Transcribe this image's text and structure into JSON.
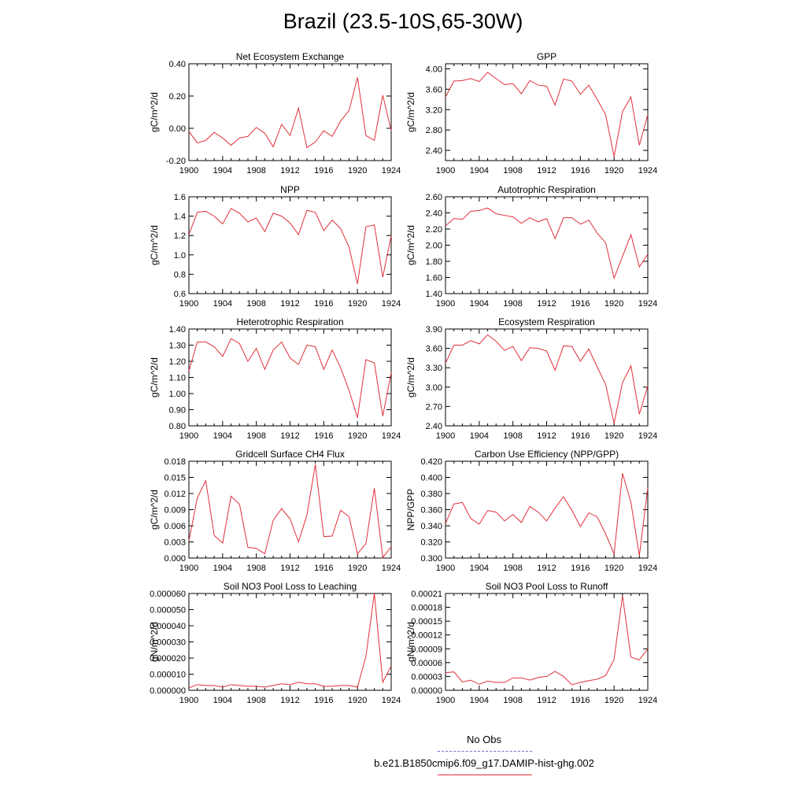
{
  "page": {
    "title": "Brazil (23.5-10S,65-30W)"
  },
  "legend": {
    "items": [
      {
        "label": "No Obs",
        "color": "#6a6ad0",
        "style": "dashed"
      },
      {
        "label": "b.e21.B1850cmip6.f09_g17.DAMIP-hist-ghg.002",
        "color": "#e0303a",
        "style": "solid"
      }
    ]
  },
  "chart_data": [
    {
      "type": "line",
      "title": "Net Ecosystem Exchange",
      "xlabel": "",
      "ylabel": "gC/m^2/d",
      "xlim": [
        1900,
        1924
      ],
      "ylim": [
        -0.2,
        0.4
      ],
      "xticks": [
        "1900",
        "1904",
        "1908",
        "1912",
        "1916",
        "1920",
        "1924"
      ],
      "yticks": [
        "-0.20",
        "0.00",
        "0.20",
        "0.40"
      ],
      "series": [
        {
          "color": "#e0303a",
          "x": [
            1900,
            1901,
            1902,
            1903,
            1904,
            1905,
            1906,
            1907,
            1908,
            1909,
            1910,
            1911,
            1912,
            1913,
            1914,
            1915,
            1916,
            1917,
            1918,
            1919,
            1920,
            1921,
            1922,
            1923,
            1924
          ],
          "y": [
            -0.02,
            -0.09,
            -0.075,
            -0.025,
            -0.06,
            -0.105,
            -0.06,
            -0.05,
            0.005,
            -0.03,
            -0.115,
            0.025,
            -0.045,
            0.125,
            -0.12,
            -0.085,
            -0.015,
            -0.05,
            0.045,
            0.11,
            0.315,
            -0.045,
            -0.075,
            0.205,
            -0.015
          ]
        }
      ]
    },
    {
      "type": "line",
      "title": "GPP",
      "xlabel": "",
      "ylabel": "gC/m^2/d",
      "xlim": [
        1900,
        1924
      ],
      "ylim": [
        2.2,
        4.1
      ],
      "xticks": [
        "1900",
        "1904",
        "1908",
        "1912",
        "1916",
        "1920",
        "1924"
      ],
      "yticks": [
        "2.40",
        "2.80",
        "3.20",
        "3.60",
        "4.00"
      ],
      "series": [
        {
          "color": "#e0303a",
          "x": [
            1900,
            1901,
            1902,
            1903,
            1904,
            1905,
            1906,
            1907,
            1908,
            1909,
            1910,
            1911,
            1912,
            1913,
            1914,
            1915,
            1916,
            1917,
            1918,
            1919,
            1920,
            1921,
            1922,
            1923,
            1924
          ],
          "y": [
            3.45,
            3.76,
            3.77,
            3.81,
            3.75,
            3.93,
            3.81,
            3.69,
            3.71,
            3.51,
            3.77,
            3.68,
            3.66,
            3.29,
            3.8,
            3.76,
            3.5,
            3.68,
            3.4,
            3.1,
            2.28,
            3.16,
            3.45,
            2.5,
            3.1
          ]
        }
      ]
    },
    {
      "type": "line",
      "title": "NPP",
      "xlabel": "",
      "ylabel": "gC/m^2/d",
      "xlim": [
        1900,
        1924
      ],
      "ylim": [
        0.6,
        1.6
      ],
      "xticks": [
        "1900",
        "1904",
        "1908",
        "1912",
        "1916",
        "1920",
        "1924"
      ],
      "yticks": [
        "0.6",
        "0.8",
        "1.0",
        "1.2",
        "1.4",
        "1.6"
      ],
      "series": [
        {
          "color": "#e0303a",
          "x": [
            1900,
            1901,
            1902,
            1903,
            1904,
            1905,
            1906,
            1907,
            1908,
            1909,
            1910,
            1911,
            1912,
            1913,
            1914,
            1915,
            1916,
            1917,
            1918,
            1919,
            1920,
            1921,
            1922,
            1923,
            1924
          ],
          "y": [
            1.21,
            1.44,
            1.45,
            1.4,
            1.32,
            1.48,
            1.43,
            1.34,
            1.38,
            1.24,
            1.43,
            1.4,
            1.33,
            1.21,
            1.46,
            1.44,
            1.25,
            1.36,
            1.27,
            1.08,
            0.7,
            1.29,
            1.31,
            0.77,
            1.2
          ]
        }
      ]
    },
    {
      "type": "line",
      "title": "Autotrophic Respiration",
      "xlabel": "",
      "ylabel": "gC/m^2/d",
      "xlim": [
        1900,
        1924
      ],
      "ylim": [
        1.4,
        2.6
      ],
      "xticks": [
        "1900",
        "1904",
        "1908",
        "1912",
        "1916",
        "1920",
        "1924"
      ],
      "yticks": [
        "1.40",
        "1.60",
        "1.80",
        "2.00",
        "2.20",
        "2.40",
        "2.60"
      ],
      "series": [
        {
          "color": "#e0303a",
          "x": [
            1900,
            1901,
            1902,
            1903,
            1904,
            1905,
            1906,
            1907,
            1908,
            1909,
            1910,
            1911,
            1912,
            1913,
            1914,
            1915,
            1916,
            1917,
            1918,
            1919,
            1920,
            1921,
            1922,
            1923,
            1924
          ],
          "y": [
            2.24,
            2.33,
            2.32,
            2.42,
            2.43,
            2.46,
            2.39,
            2.37,
            2.35,
            2.27,
            2.34,
            2.29,
            2.33,
            2.08,
            2.34,
            2.34,
            2.26,
            2.31,
            2.15,
            2.03,
            1.59,
            1.86,
            2.13,
            1.73,
            1.89
          ]
        }
      ]
    },
    {
      "type": "line",
      "title": "Heterotrophic Respiration",
      "xlabel": "",
      "ylabel": "gC/m^2/d",
      "xlim": [
        1900,
        1924
      ],
      "ylim": [
        0.8,
        1.4
      ],
      "xticks": [
        "1900",
        "1904",
        "1908",
        "1912",
        "1916",
        "1920",
        "1924"
      ],
      "yticks": [
        "0.80",
        "0.90",
        "1.00",
        "1.10",
        "1.20",
        "1.30",
        "1.40"
      ],
      "series": [
        {
          "color": "#e0303a",
          "x": [
            1900,
            1901,
            1902,
            1903,
            1904,
            1905,
            1906,
            1907,
            1908,
            1909,
            1910,
            1911,
            1912,
            1913,
            1914,
            1915,
            1916,
            1917,
            1918,
            1919,
            1920,
            1921,
            1922,
            1923,
            1924
          ],
          "y": [
            1.14,
            1.32,
            1.32,
            1.29,
            1.23,
            1.34,
            1.31,
            1.2,
            1.28,
            1.15,
            1.27,
            1.32,
            1.22,
            1.18,
            1.3,
            1.29,
            1.15,
            1.27,
            1.16,
            1.02,
            0.85,
            1.21,
            1.19,
            0.86,
            1.13
          ]
        }
      ]
    },
    {
      "type": "line",
      "title": "Ecosystem Respiration",
      "xlabel": "",
      "ylabel": "gC/m^2/d",
      "xlim": [
        1900,
        1924
      ],
      "ylim": [
        2.4,
        3.9
      ],
      "xticks": [
        "1900",
        "1904",
        "1908",
        "1912",
        "1916",
        "1920",
        "1924"
      ],
      "yticks": [
        "2.40",
        "2.70",
        "3.00",
        "3.30",
        "3.60",
        "3.90"
      ],
      "series": [
        {
          "color": "#e0303a",
          "x": [
            1900,
            1901,
            1902,
            1903,
            1904,
            1905,
            1906,
            1907,
            1908,
            1909,
            1910,
            1911,
            1912,
            1913,
            1914,
            1915,
            1916,
            1917,
            1918,
            1919,
            1920,
            1921,
            1922,
            1923,
            1924
          ],
          "y": [
            3.37,
            3.65,
            3.65,
            3.72,
            3.67,
            3.81,
            3.71,
            3.57,
            3.63,
            3.41,
            3.61,
            3.6,
            3.56,
            3.26,
            3.64,
            3.63,
            3.4,
            3.59,
            3.31,
            3.04,
            2.44,
            3.07,
            3.33,
            2.58,
            3.02
          ]
        }
      ]
    },
    {
      "type": "line",
      "title": "Gridcell Surface CH4 Flux",
      "xlabel": "",
      "ylabel": "gC/m^2/d",
      "xlim": [
        1900,
        1924
      ],
      "ylim": [
        0,
        0.018
      ],
      "xticks": [
        "1900",
        "1904",
        "1908",
        "1912",
        "1916",
        "1920",
        "1924"
      ],
      "yticks": [
        "0.000",
        "0.003",
        "0.006",
        "0.009",
        "0.012",
        "0.015",
        "0.018"
      ],
      "series": [
        {
          "color": "#e0303a",
          "x": [
            1900,
            1901,
            1902,
            1903,
            1904,
            1905,
            1906,
            1907,
            1908,
            1909,
            1910,
            1911,
            1912,
            1913,
            1914,
            1915,
            1916,
            1917,
            1918,
            1919,
            1920,
            1921,
            1922,
            1923,
            1924
          ],
          "y": [
            0.0032,
            0.0112,
            0.0144,
            0.0042,
            0.0028,
            0.0115,
            0.01,
            0.002,
            0.0018,
            0.0008,
            0.007,
            0.0092,
            0.0073,
            0.003,
            0.008,
            0.0174,
            0.004,
            0.0041,
            0.0089,
            0.0077,
            0.0008,
            0.0027,
            0.013,
            0.0001,
            0.0021
          ]
        }
      ]
    },
    {
      "type": "line",
      "title": "Carbon Use Efficiency (NPP/GPP)",
      "xlabel": "",
      "ylabel": "NPP/GPP",
      "xlim": [
        1900,
        1924
      ],
      "ylim": [
        0.3,
        0.42
      ],
      "xticks": [
        "1900",
        "1904",
        "1908",
        "1912",
        "1916",
        "1920",
        "1924"
      ],
      "yticks": [
        "0.300",
        "0.320",
        "0.340",
        "0.360",
        "0.380",
        "0.400",
        "0.420"
      ],
      "series": [
        {
          "color": "#e0303a",
          "x": [
            1900,
            1901,
            1902,
            1903,
            1904,
            1905,
            1906,
            1907,
            1908,
            1909,
            1910,
            1911,
            1912,
            1913,
            1914,
            1915,
            1916,
            1917,
            1918,
            1919,
            1920,
            1921,
            1922,
            1923,
            1924
          ],
          "y": [
            0.343,
            0.367,
            0.369,
            0.349,
            0.342,
            0.359,
            0.357,
            0.346,
            0.354,
            0.344,
            0.364,
            0.357,
            0.346,
            0.362,
            0.376,
            0.359,
            0.339,
            0.356,
            0.351,
            0.33,
            0.305,
            0.405,
            0.369,
            0.303,
            0.387
          ]
        }
      ]
    },
    {
      "type": "line",
      "title": "Soil NO3 Pool Loss to Leaching",
      "xlabel": "",
      "ylabel": "gN/m^2/d",
      "xlim": [
        1900,
        1924
      ],
      "ylim": [
        0,
        6e-05
      ],
      "xticks": [
        "1900",
        "1904",
        "1908",
        "1912",
        "1916",
        "1920",
        "1924"
      ],
      "yticks": [
        "0.000000",
        "0.000010",
        "0.000020",
        "0.000030",
        "0.000040",
        "0.000050",
        "0.000060"
      ],
      "series": [
        {
          "color": "#e0303a",
          "x": [
            1900,
            1901,
            1902,
            1903,
            1904,
            1905,
            1906,
            1907,
            1908,
            1909,
            1910,
            1911,
            1912,
            1913,
            1914,
            1915,
            1916,
            1917,
            1918,
            1919,
            1920,
            1921,
            1922,
            1923,
            1924
          ],
          "y": [
            1.5e-06,
            3.5e-06,
            3e-06,
            3e-06,
            2e-06,
            3.5e-06,
            3e-06,
            2.5e-06,
            2.5e-06,
            2e-06,
            3e-06,
            4e-06,
            3.5e-06,
            5e-06,
            4e-06,
            4e-06,
            2.5e-06,
            2.5e-06,
            3e-06,
            3e-06,
            2e-06,
            2.1e-05,
            6e-05,
            5e-06,
            1.5e-05
          ]
        }
      ]
    },
    {
      "type": "line",
      "title": "Soil NO3 Pool Loss to Runoff",
      "xlabel": "",
      "ylabel": "gN/m^2/d",
      "xlim": [
        1900,
        1924
      ],
      "ylim": [
        0,
        0.00021
      ],
      "xticks": [
        "1900",
        "1904",
        "1908",
        "1912",
        "1916",
        "1920",
        "1924"
      ],
      "yticks": [
        "0.00000",
        "0.00003",
        "0.00006",
        "0.00009",
        "0.00012",
        "0.00015",
        "0.00018",
        "0.00021"
      ],
      "series": [
        {
          "color": "#e0303a",
          "x": [
            1900,
            1901,
            1902,
            1903,
            1904,
            1905,
            1906,
            1907,
            1908,
            1909,
            1910,
            1911,
            1912,
            1913,
            1914,
            1915,
            1916,
            1917,
            1918,
            1919,
            1920,
            1921,
            1922,
            1923,
            1924
          ],
          "y": [
            3.8e-05,
            4e-05,
            1.8e-05,
            2.2e-05,
            1.3e-05,
            2e-05,
            1.7e-05,
            1.7e-05,
            2.7e-05,
            2.7e-05,
            2.2e-05,
            2.8e-05,
            3e-05,
            4.1e-05,
            3e-05,
            1.2e-05,
            1.7e-05,
            2.1e-05,
            2.4e-05,
            3.2e-05,
            6.7e-05,
            0.000205,
            7.2e-05,
            6.6e-05,
            9e-05
          ]
        }
      ]
    }
  ]
}
